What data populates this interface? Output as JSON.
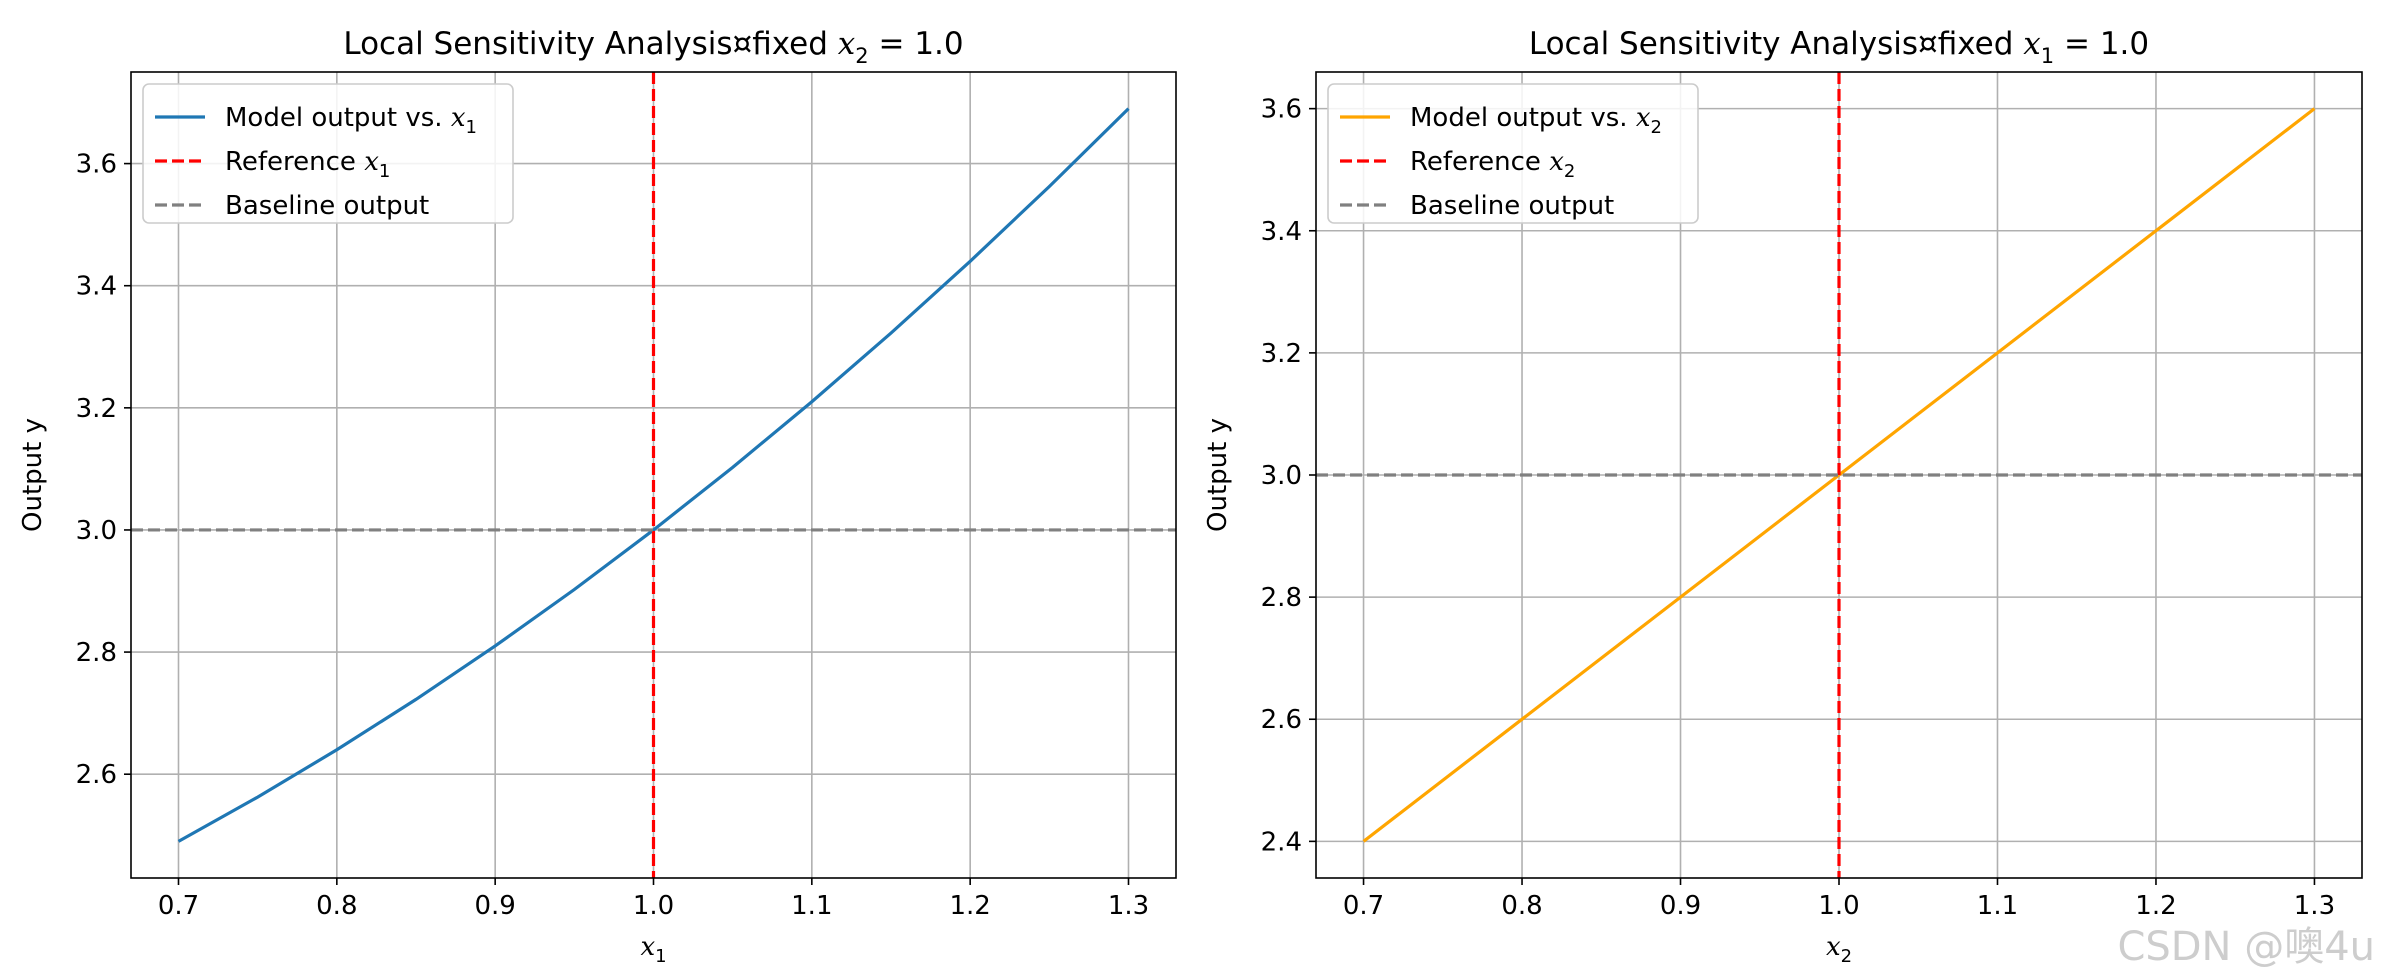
{
  "watermark": "CSDN @噢4u",
  "chart_data": [
    {
      "type": "line",
      "title": {
        "prefix": "Local Sensitivity Analysis¤fixed ",
        "var": "x",
        "sub": "2",
        "suffix": " = 1.0"
      },
      "xlabel": {
        "var": "x",
        "sub": "1"
      },
      "ylabel": "Output y",
      "xlim": [
        0.67,
        1.33
      ],
      "ylim": [
        2.43,
        3.75
      ],
      "xticks": [
        0.7,
        0.8,
        0.9,
        1.0,
        1.1,
        1.2,
        1.3
      ],
      "yticks": [
        2.6,
        2.8,
        3.0,
        3.2,
        3.4,
        3.6
      ],
      "grid": true,
      "legend_position": "upper-left",
      "series": [
        {
          "name": "Model output vs. x1",
          "legend": {
            "prefix": "Model output vs. ",
            "var": "x",
            "sub": "1"
          },
          "color": "#1f77b4",
          "style": "solid",
          "x": [
            0.7,
            0.75,
            0.8,
            0.85,
            0.9,
            0.95,
            1.0,
            1.05,
            1.1,
            1.15,
            1.2,
            1.25,
            1.3
          ],
          "y": [
            2.49,
            2.5625,
            2.64,
            2.7225,
            2.81,
            2.9025,
            3.0,
            3.1025,
            3.21,
            3.3225,
            3.44,
            3.5625,
            3.69
          ]
        }
      ],
      "vline": {
        "x": 1.0,
        "color": "#ff0000",
        "legend": {
          "prefix": "Reference ",
          "var": "x",
          "sub": "1"
        }
      },
      "hline": {
        "y": 3.0,
        "color": "#808080",
        "legend": {
          "prefix": "Baseline output",
          "var": "",
          "sub": ""
        }
      }
    },
    {
      "type": "line",
      "title": {
        "prefix": "Local Sensitivity Analysis¤fixed ",
        "var": "x",
        "sub": "1",
        "suffix": " = 1.0"
      },
      "xlabel": {
        "var": "x",
        "sub": "2"
      },
      "ylabel": "Output y",
      "xlim": [
        0.67,
        1.33
      ],
      "ylim": [
        2.34,
        3.66
      ],
      "xticks": [
        0.7,
        0.8,
        0.9,
        1.0,
        1.1,
        1.2,
        1.3
      ],
      "yticks": [
        2.4,
        2.6,
        2.8,
        3.0,
        3.2,
        3.4,
        3.6
      ],
      "grid": true,
      "legend_position": "upper-left",
      "series": [
        {
          "name": "Model output vs. x2",
          "legend": {
            "prefix": "Model output vs. ",
            "var": "x",
            "sub": "2"
          },
          "color": "#ffa500",
          "style": "solid",
          "x": [
            0.7,
            1.3
          ],
          "y": [
            2.4,
            3.6
          ]
        }
      ],
      "vline": {
        "x": 1.0,
        "color": "#ff0000",
        "legend": {
          "prefix": "Reference ",
          "var": "x",
          "sub": "2"
        }
      },
      "hline": {
        "y": 3.0,
        "color": "#808080",
        "legend": {
          "prefix": "Baseline output",
          "var": "",
          "sub": ""
        }
      }
    }
  ]
}
